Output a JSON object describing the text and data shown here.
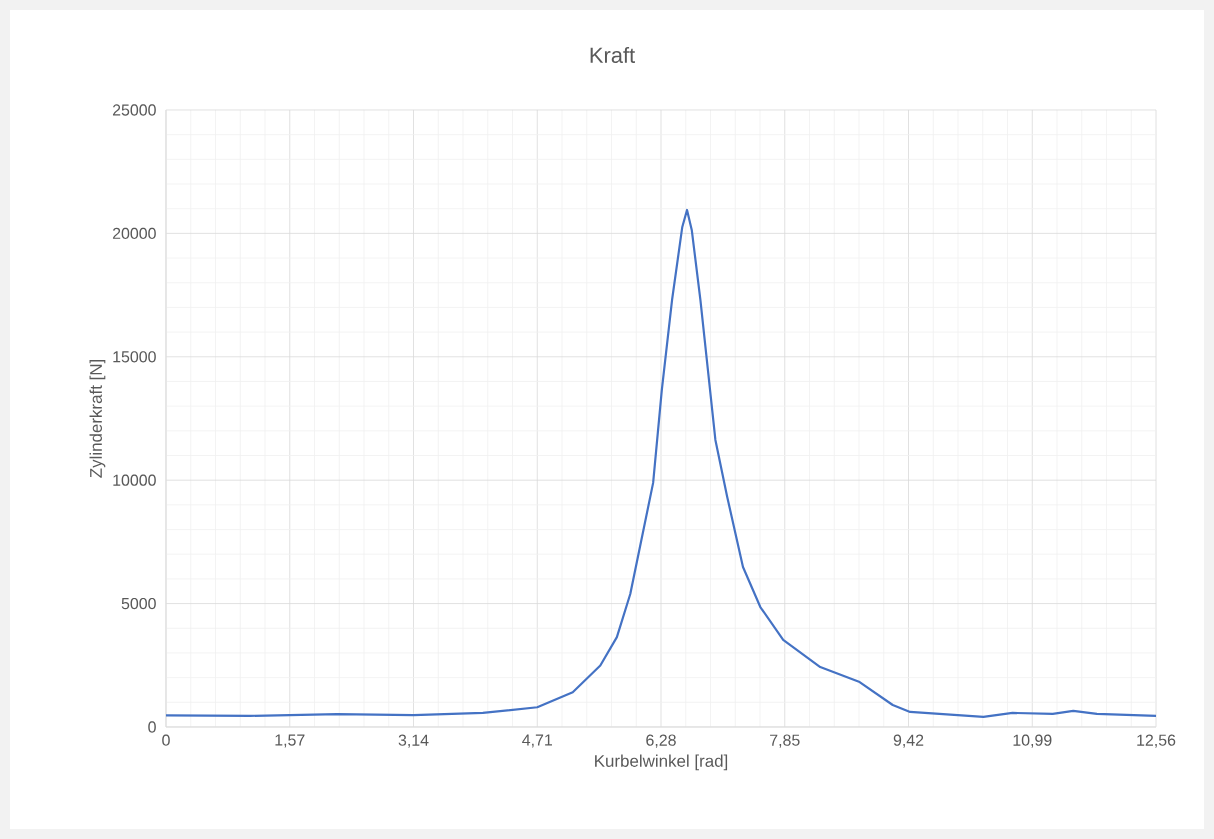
{
  "chart_data": {
    "type": "line",
    "title": "Kraft",
    "xlabel": "Kurbelwinkel [rad]",
    "ylabel": "Zylinderkraft [N]",
    "x": [
      0,
      1.07,
      2.17,
      3.14,
      4.02,
      4.71,
      5.16,
      5.51,
      5.72,
      5.89,
      6.18,
      6.29,
      6.42,
      6.55,
      6.61,
      6.67,
      6.78,
      6.97,
      7.12,
      7.32,
      7.54,
      7.83,
      8.3,
      8.8,
      9.22,
      9.44,
      10.37,
      10.74,
      11.25,
      11.51,
      11.81,
      12.56
    ],
    "series": [
      {
        "color": "#4472c4",
        "values": [
          470,
          450,
          520,
          480,
          570,
          800,
          1410,
          2490,
          3640,
          5390,
          9890,
          13650,
          17300,
          20260,
          20950,
          20140,
          17300,
          11630,
          9320,
          6480,
          4860,
          3530,
          2430,
          1820,
          890,
          610,
          410,
          570,
          530,
          650,
          530,
          450
        ]
      }
    ],
    "xlim": [
      0,
      12.56
    ],
    "ylim": [
      0,
      25000
    ],
    "xticks": [
      0,
      {
        "value": 1.57,
        "label": "1,57"
      },
      {
        "value": 3.14,
        "label": "3,14"
      },
      {
        "value": 4.71,
        "label": "4,71"
      },
      {
        "value": 6.28,
        "label": "6,28"
      },
      {
        "value": 7.85,
        "label": "7,85"
      },
      {
        "value": 9.42,
        "label": "9,42"
      },
      {
        "value": 10.99,
        "label": "10,99"
      },
      {
        "value": 12.56,
        "label": "12,56"
      }
    ],
    "yticks": [
      0,
      5000,
      10000,
      15000,
      20000,
      25000
    ],
    "grid": true,
    "marker": "none",
    "line_style": "solid"
  }
}
